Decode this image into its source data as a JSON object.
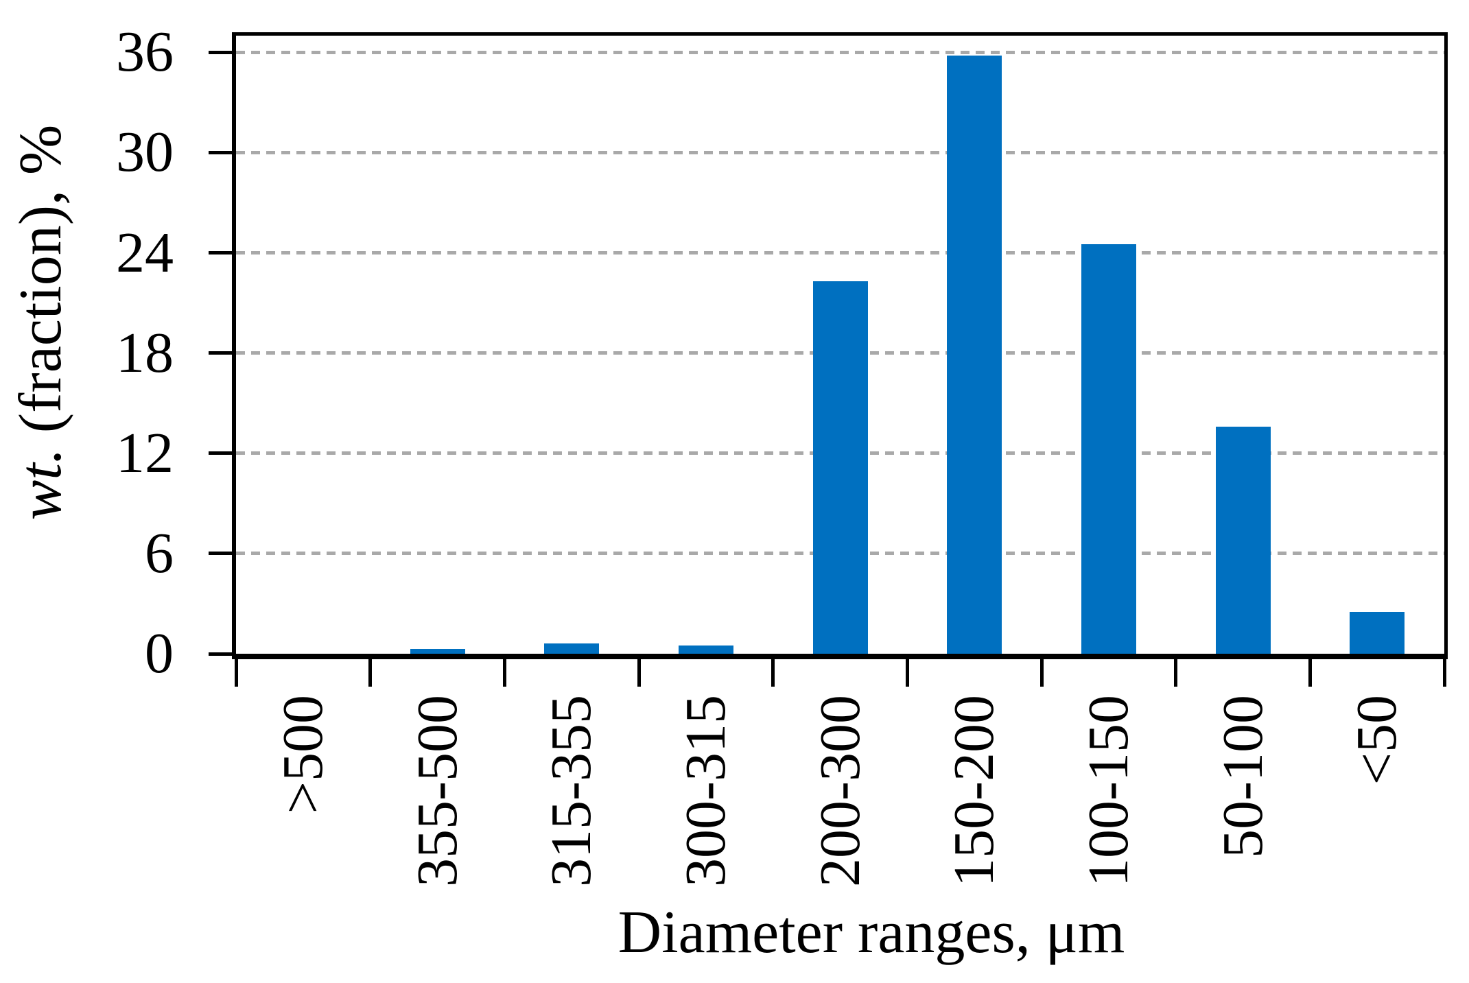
{
  "chart_data": {
    "type": "bar",
    "categories": [
      ">500",
      "355-500",
      "315-355",
      "300-315",
      "200-300",
      "150-200",
      "100-150",
      "50-100",
      "<50"
    ],
    "values": [
      0,
      0.3,
      0.6,
      0.5,
      22.3,
      35.8,
      24.5,
      13.6,
      2.5
    ],
    "title": "",
    "xlabel": "Diameter ranges, μm",
    "ylabel": "wt. (fraction), %",
    "ylabel_italic_part": "wt.",
    "ylabel_rest_part": " (fraction), %",
    "yticks": [
      0,
      6,
      12,
      18,
      24,
      30,
      36
    ],
    "ylim": [
      0,
      37
    ],
    "grid": "horizontal-dashed",
    "legend": "none",
    "bar_color": "#0070C0",
    "grid_color": "#A9A9A9",
    "axis_color": "#000000"
  }
}
